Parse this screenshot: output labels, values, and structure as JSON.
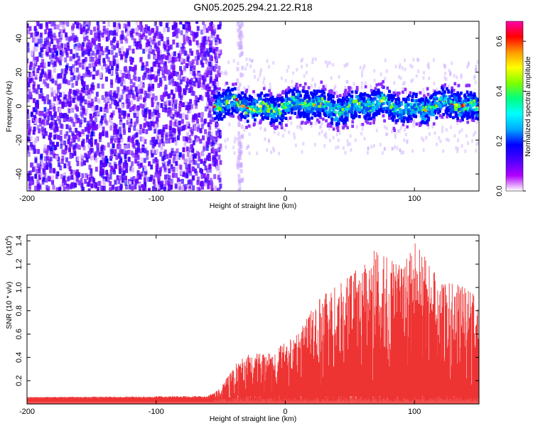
{
  "title": "GN05.2025.294.21.22.R18",
  "chart_data": [
    {
      "type": "heatmap",
      "xlabel": "Height of straight line (km)",
      "ylabel": "Frequency (Hz)",
      "xlim": [
        -200,
        150
      ],
      "ylim": [
        -50,
        50
      ],
      "x_ticks": [
        "-200",
        "-100",
        "0",
        "100"
      ],
      "y_ticks": [
        "-40",
        "-20",
        "0",
        "20",
        "40"
      ],
      "colorbar": {
        "label": "Normalized spectral amplitude",
        "range": [
          0.0,
          0.68
        ],
        "ticks": [
          "0.0",
          "0.2",
          "0.4",
          "0.6"
        ],
        "colormap": [
          "#ffffff",
          "#b100ff",
          "#4b00ff",
          "#0000ff",
          "#00aaff",
          "#00ffff",
          "#00ff80",
          "#80ff00",
          "#ffff00",
          "#ff9900",
          "#ff0000",
          "#ff00aa"
        ]
      },
      "features": {
        "noise_region_x": [
          -200,
          -50
        ],
        "noise_color": "#6a00ff",
        "signal_start_x": -55,
        "signal_band_halfwidth_hz": 6,
        "faint_stripe_x": -35
      }
    },
    {
      "type": "line",
      "xlabel": "Height of straight line (km)",
      "ylabel": "SNR (10 * v/v)",
      "multiplier": "(x10",
      "multiplier_exp": "4",
      "multiplier_close": ")",
      "xlim": [
        -200,
        150
      ],
      "ylim": [
        0.0,
        1.45
      ],
      "x_ticks": [
        "-200",
        "-100",
        "0",
        "100"
      ],
      "y_ticks": [
        "0.2",
        "0.4",
        "0.6",
        "0.8",
        "1.0",
        "1.2",
        "1.4"
      ],
      "series_color": "#ee3333",
      "envelope": [
        {
          "x": -200,
          "y": 0.06
        },
        {
          "x": -60,
          "y": 0.07
        },
        {
          "x": -50,
          "y": 0.14
        },
        {
          "x": -40,
          "y": 0.33
        },
        {
          "x": -30,
          "y": 0.42
        },
        {
          "x": -10,
          "y": 0.45
        },
        {
          "x": 10,
          "y": 0.6
        },
        {
          "x": 25,
          "y": 0.9
        },
        {
          "x": 45,
          "y": 1.05
        },
        {
          "x": 60,
          "y": 1.2
        },
        {
          "x": 70,
          "y": 1.33
        },
        {
          "x": 90,
          "y": 1.18
        },
        {
          "x": 100,
          "y": 1.42
        },
        {
          "x": 120,
          "y": 1.05
        },
        {
          "x": 135,
          "y": 1.02
        },
        {
          "x": 150,
          "y": 0.92
        }
      ]
    }
  ]
}
